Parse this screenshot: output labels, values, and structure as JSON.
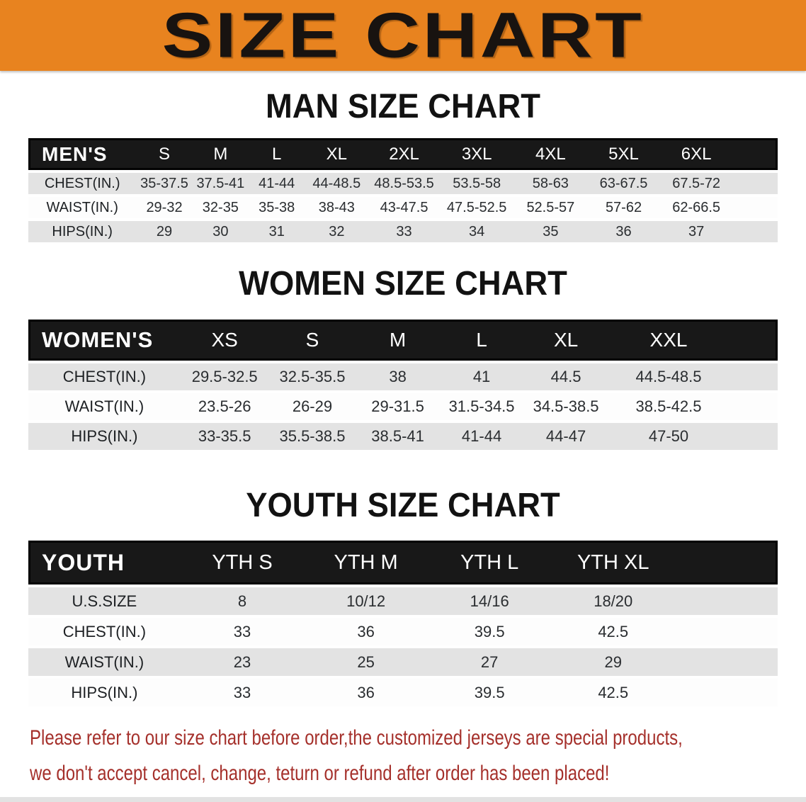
{
  "banner": {
    "title": "SIZE CHART",
    "background": "#E8831F"
  },
  "sections": [
    {
      "title": "MAN SIZE CHART",
      "header_label": "MEN'S",
      "columns": [
        "S",
        "M",
        "L",
        "XL",
        "2XL",
        "3XL",
        "4XL",
        "5XL",
        "6XL"
      ],
      "rows": [
        {
          "label": "CHEST(IN.)",
          "values": [
            "35-37.5",
            "37.5-41",
            "41-44",
            "44-48.5",
            "48.5-53.5",
            "53.5-58",
            "58-63",
            "63-67.5",
            "67.5-72"
          ]
        },
        {
          "label": "WAIST(IN.)",
          "values": [
            "29-32",
            "32-35",
            "35-38",
            "38-43",
            "43-47.5",
            "47.5-52.5",
            "52.5-57",
            "57-62",
            "62-66.5"
          ]
        },
        {
          "label": "HIPS(IN.)",
          "values": [
            "29",
            "30",
            "31",
            "32",
            "33",
            "34",
            "35",
            "36",
            "37"
          ]
        }
      ]
    },
    {
      "title": "WOMEN SIZE CHART",
      "header_label": "WOMEN'S",
      "columns": [
        "XS",
        "S",
        "M",
        "L",
        "XL",
        "XXL"
      ],
      "rows": [
        {
          "label": "CHEST(IN.)",
          "values": [
            "29.5-32.5",
            "32.5-35.5",
            "38",
            "41",
            "44.5",
            "44.5-48.5"
          ]
        },
        {
          "label": "WAIST(IN.)",
          "values": [
            "23.5-26",
            "26-29",
            "29-31.5",
            "31.5-34.5",
            "34.5-38.5",
            "38.5-42.5"
          ]
        },
        {
          "label": "HIPS(IN.)",
          "values": [
            "33-35.5",
            "35.5-38.5",
            "38.5-41",
            "41-44",
            "44-47",
            "47-50"
          ]
        }
      ]
    },
    {
      "title": "YOUTH SIZE CHART",
      "header_label": "YOUTH",
      "columns": [
        "YTH S",
        "YTH M",
        "YTH L",
        "YTH XL"
      ],
      "rows": [
        {
          "label": "U.S.SIZE",
          "values": [
            "8",
            "10/12",
            "14/16",
            "18/20"
          ]
        },
        {
          "label": "CHEST(IN.)",
          "values": [
            "33",
            "36",
            "39.5",
            "42.5"
          ]
        },
        {
          "label": "WAIST(IN.)",
          "values": [
            "23",
            "25",
            "27",
            "29"
          ]
        },
        {
          "label": "HIPS(IN.)",
          "values": [
            "33",
            "36",
            "39.5",
            "42.5"
          ]
        }
      ]
    }
  ],
  "footnote": {
    "line1": "Please refer to our size chart before order,the customized jerseys are special products,",
    "line2": "we don't accept cancel, change, teturn or refund after order has been placed!",
    "color": "#A5302B"
  }
}
